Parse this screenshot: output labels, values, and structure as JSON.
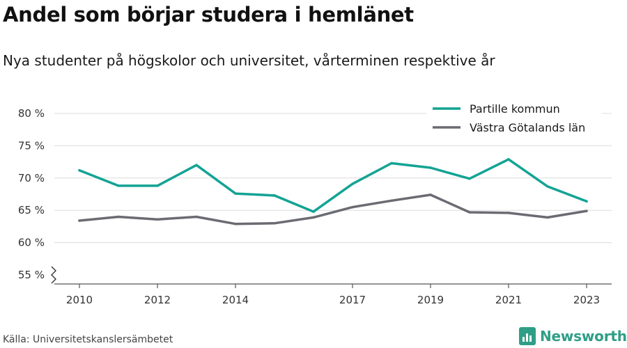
{
  "title": "Andel som börjar studera i hemlänet",
  "subtitle": "Nya studenter på högskolor och universitet, vårterminen respektive år",
  "source": "Källa: Universitetskanslersämbetet",
  "brand": {
    "name": "Newsworthy",
    "color": "#2f9e86",
    "icon": "newsworthy-logo-icon"
  },
  "chart_data": {
    "type": "line",
    "x": [
      2010,
      2011,
      2012,
      2013,
      2014,
      2015,
      2016,
      2017,
      2018,
      2019,
      2020,
      2021,
      2022,
      2023
    ],
    "x_tick_values": [
      2010,
      2012,
      2014,
      2017,
      2019,
      2021,
      2023
    ],
    "x_tick_labels": [
      "2010",
      "2012",
      "2014",
      "2017",
      "2019",
      "2021",
      "2023"
    ],
    "y_tick_values": [
      55,
      60,
      65,
      70,
      75,
      80
    ],
    "y_tick_labels": [
      "55 %",
      "60 %",
      "65 %",
      "70 %",
      "75 %",
      "80 %"
    ],
    "ylim": [
      55,
      80
    ],
    "y_axis_break": true,
    "grid": true,
    "legend_position": "top-right",
    "series": [
      {
        "name": "Partille kommun",
        "color": "#13a394",
        "values": [
          71.2,
          68.8,
          68.8,
          72.0,
          67.6,
          67.3,
          64.8,
          69.1,
          72.3,
          71.6,
          69.9,
          72.9,
          68.7,
          66.4
        ]
      },
      {
        "name": "Västra Götalands län",
        "color": "#6b6b73",
        "values": [
          63.4,
          64.0,
          63.6,
          64.0,
          62.9,
          63.0,
          63.9,
          65.5,
          66.5,
          67.4,
          64.7,
          64.6,
          63.9,
          64.9
        ]
      }
    ]
  }
}
